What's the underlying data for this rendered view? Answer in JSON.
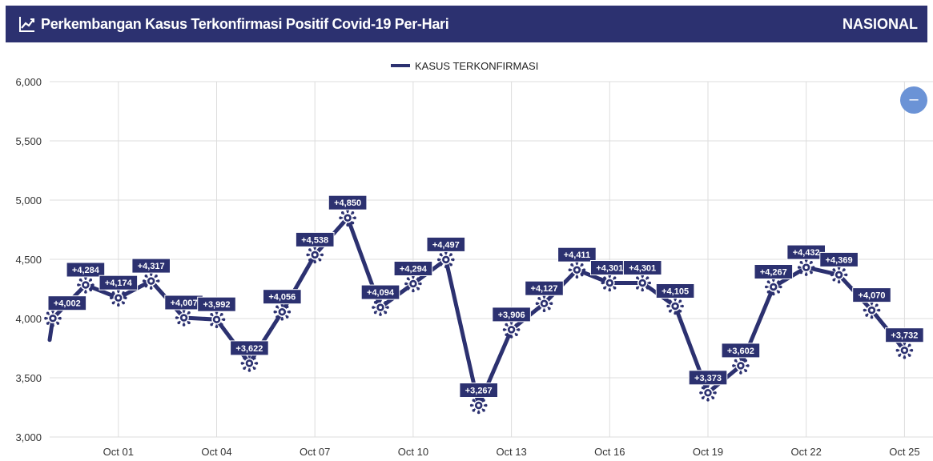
{
  "header": {
    "title": "Perkembangan Kasus Terkonfirmasi Positif Covid-19 Per-Hari",
    "scope": "NASIONAL",
    "icon": "line-chart-icon"
  },
  "legend": {
    "label": "KASUS TERKONFIRMASI",
    "color": "#2c3170"
  },
  "zoom_button": {
    "icon": "minus-icon",
    "label": "–"
  },
  "colors": {
    "header_bg": "#2c3170",
    "series": "#2c3170",
    "zoom": "#6b93d6",
    "grid": "#dddddd"
  },
  "chart_data": {
    "type": "line",
    "title": "Perkembangan Kasus Terkonfirmasi Positif Covid-19 Per-Hari",
    "xlabel": "",
    "ylabel": "",
    "ylim": [
      3000,
      6000
    ],
    "yticks": [
      3000,
      3500,
      4000,
      4500,
      5000,
      5500,
      6000
    ],
    "ytick_labels": [
      "3,000",
      "3,500",
      "4,000",
      "4,500",
      "5,000",
      "5,500",
      "6,000"
    ],
    "xticks": [
      "Oct 01",
      "Oct 04",
      "Oct 07",
      "Oct 10",
      "Oct 13",
      "Oct 16",
      "Oct 19",
      "Oct 22",
      "Oct 25"
    ],
    "grid": true,
    "legend_position": "top-center",
    "series": [
      {
        "name": "KASUS TERKONFIRMASI",
        "x": [
          "Sep 29",
          "Sep 30",
          "Oct 01",
          "Oct 02",
          "Oct 03",
          "Oct 04",
          "Oct 05",
          "Oct 06",
          "Oct 07",
          "Oct 08",
          "Oct 09",
          "Oct 10",
          "Oct 11",
          "Oct 12",
          "Oct 13",
          "Oct 14",
          "Oct 15",
          "Oct 16",
          "Oct 17",
          "Oct 18",
          "Oct 19",
          "Oct 20",
          "Oct 21",
          "Oct 22",
          "Oct 23",
          "Oct 24",
          "Oct 25"
        ],
        "values": [
          4002,
          4284,
          4174,
          4317,
          4007,
          3992,
          3622,
          4056,
          4538,
          4850,
          4094,
          4294,
          4497,
          3267,
          3906,
          4127,
          4411,
          4301,
          4301,
          4105,
          3373,
          3602,
          4267,
          4432,
          4369,
          4070,
          3732
        ],
        "labels": [
          "+4,002",
          "+4,284",
          "+4,174",
          "+4,317",
          "+4,007",
          "+3,992",
          "+3,622",
          "+4,056",
          "+4,538",
          "+4,850",
          "+4,094",
          "+4,294",
          "+4,497",
          "+3,267",
          "+3,906",
          "+4,127",
          "+4,411",
          "+4,301",
          "+4,301",
          "+4,105",
          "+3,373",
          "+3,602",
          "+4,267",
          "+4,432",
          "+4,369",
          "+4,070",
          "+3,732"
        ]
      }
    ]
  }
}
